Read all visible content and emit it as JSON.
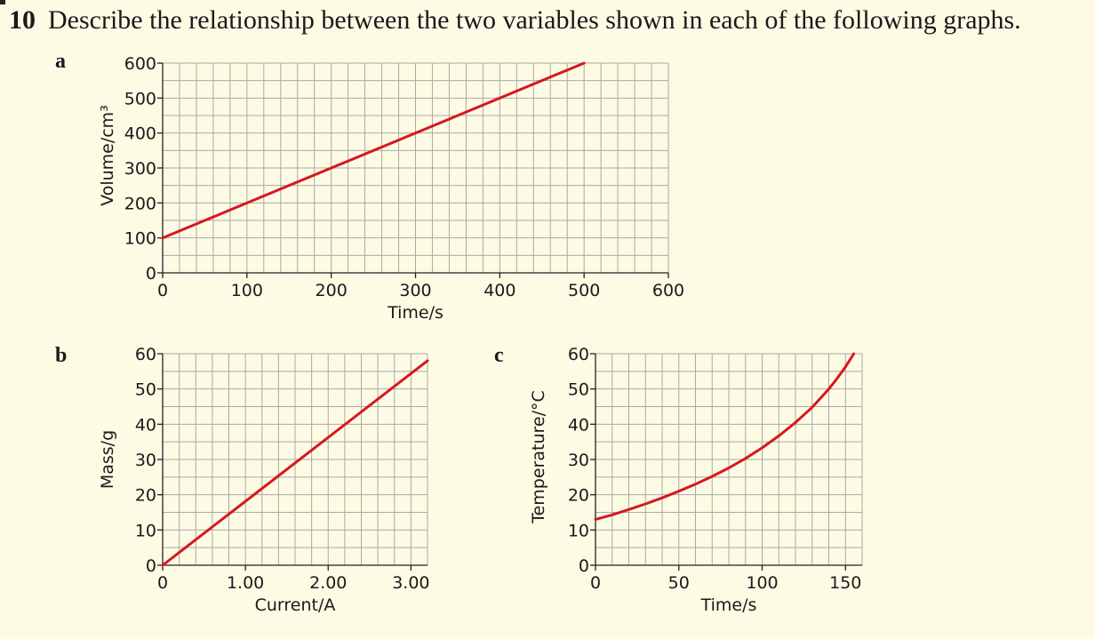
{
  "question": {
    "number": "10",
    "text": "Describe the relationship between the two variables shown in each of the following graphs."
  },
  "colors": {
    "background": "#fdfbe4",
    "series": "#d51820",
    "grid": "#a9a9a9"
  },
  "chart_data": [
    {
      "part_label": "a",
      "type": "line",
      "xlabel": "Time/s",
      "ylabel": "Volume/cm³",
      "xlim": [
        0,
        600
      ],
      "ylim": [
        0,
        600
      ],
      "x_ticks": [
        0,
        100,
        200,
        300,
        400,
        500,
        600
      ],
      "y_ticks": [
        0,
        100,
        200,
        300,
        400,
        500,
        600
      ],
      "x_tick_labels": [
        "0",
        "100",
        "200",
        "300",
        "400",
        "500",
        "600"
      ],
      "y_tick_labels": [
        "0",
        "100",
        "200",
        "300",
        "400",
        "500",
        "600"
      ],
      "grid": true,
      "series": [
        {
          "x": [
            0,
            500
          ],
          "y": [
            100,
            600
          ]
        }
      ]
    },
    {
      "part_label": "b",
      "type": "line",
      "xlabel": "Current/A",
      "ylabel": "Mass/g",
      "xlim": [
        0,
        3.2
      ],
      "ylim": [
        0,
        60
      ],
      "x_ticks": [
        0,
        1,
        2,
        3
      ],
      "y_ticks": [
        0,
        10,
        20,
        30,
        40,
        50,
        60
      ],
      "x_tick_labels": [
        "0",
        "1.00",
        "2.00",
        "3.00"
      ],
      "y_tick_labels": [
        "0",
        "10",
        "20",
        "30",
        "40",
        "50",
        "60"
      ],
      "grid": true,
      "series": [
        {
          "x": [
            0,
            3.2
          ],
          "y": [
            0,
            58
          ]
        }
      ]
    },
    {
      "part_label": "c",
      "type": "line",
      "xlabel": "Time/s",
      "ylabel": "Temperature/°C",
      "xlim": [
        0,
        160
      ],
      "ylim": [
        0,
        60
      ],
      "x_ticks": [
        0,
        50,
        100,
        150
      ],
      "y_ticks": [
        0,
        10,
        20,
        30,
        40,
        50,
        60
      ],
      "x_tick_labels": [
        "0",
        "50",
        "100",
        "150"
      ],
      "y_tick_labels": [
        "0",
        "10",
        "20",
        "30",
        "40",
        "50",
        "60"
      ],
      "grid": true,
      "series": [
        {
          "x": [
            0,
            10,
            20,
            30,
            40,
            50,
            60,
            70,
            80,
            90,
            100,
            110,
            120,
            130,
            140,
            145,
            150,
            155
          ],
          "y": [
            13,
            14.3,
            15.8,
            17.4,
            19.1,
            21,
            23,
            25.2,
            27.6,
            30.3,
            33.3,
            36.7,
            40.5,
            44.8,
            50,
            53,
            56.3,
            60
          ]
        }
      ]
    }
  ]
}
